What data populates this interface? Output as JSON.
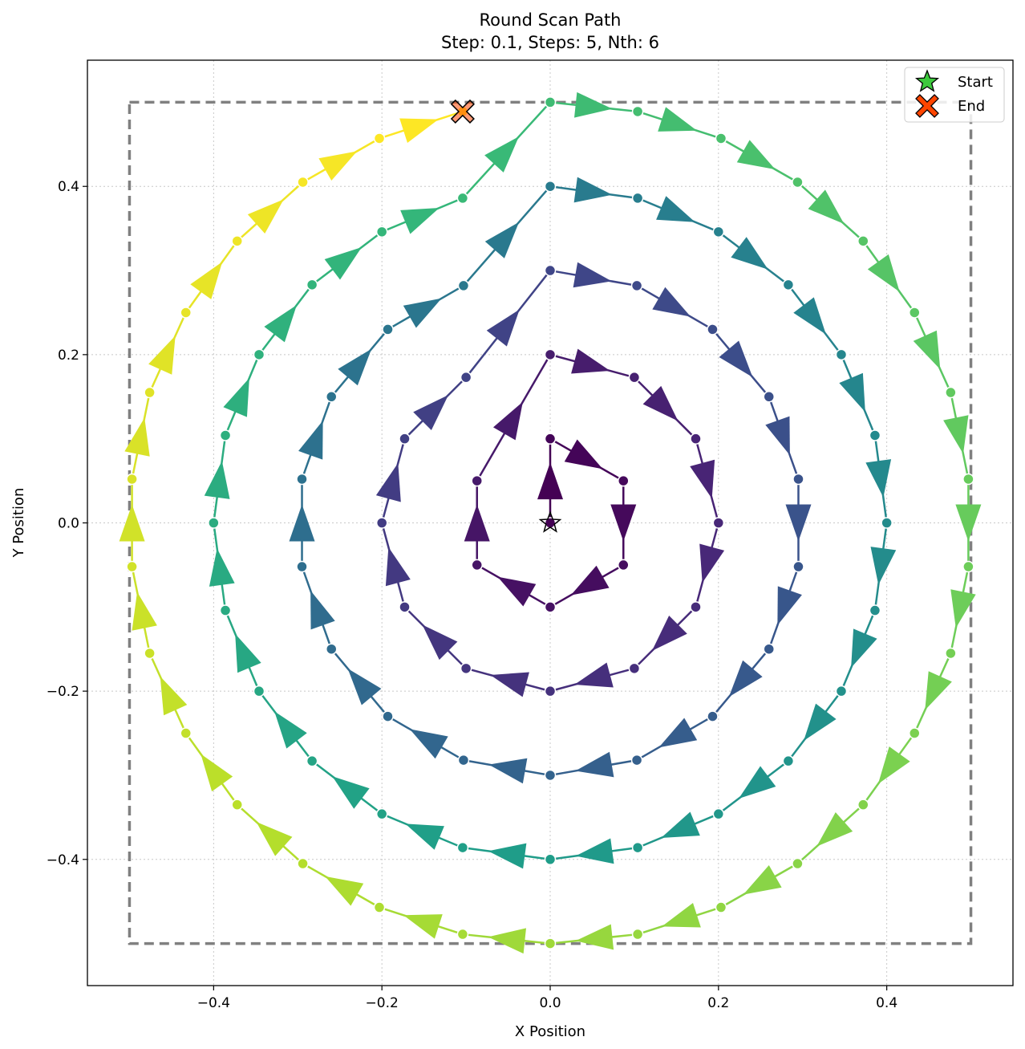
{
  "chart_data": {
    "type": "line",
    "title": "Round Scan Path",
    "subtitle": "Step: 0.1, Steps: 5, Nth: 6",
    "xlabel": "X Position",
    "ylabel": "Y Position",
    "xlim": [
      -0.55,
      0.55
    ],
    "ylim": [
      -0.55,
      0.55
    ],
    "xticks": [
      -0.4,
      -0.2,
      0.0,
      0.2,
      0.4
    ],
    "yticks": [
      -0.4,
      -0.2,
      0.0,
      0.2,
      0.4
    ],
    "xtick_labels": [
      "−0.4",
      "−0.2",
      "0.0",
      "0.2",
      "0.4"
    ],
    "ytick_labels": [
      "−0.4",
      "−0.2",
      "0.0",
      "0.2",
      "0.4"
    ],
    "grid": true,
    "legend_position": "top-right",
    "bounding_box": {
      "x": [
        -0.5,
        0.5
      ],
      "y": [
        -0.5,
        0.5
      ]
    },
    "start": {
      "label": "Start",
      "x": 0.0,
      "y": 0.0
    },
    "end": {
      "label": "End",
      "x": -0.104,
      "y": 0.489
    },
    "path": [
      [
        0.0,
        0.0
      ],
      [
        0.0,
        0.1
      ],
      [
        0.087,
        0.05
      ],
      [
        0.087,
        -0.05
      ],
      [
        0.0,
        -0.1
      ],
      [
        -0.087,
        -0.05
      ],
      [
        -0.087,
        0.05
      ],
      [
        0.0,
        0.2
      ],
      [
        0.1,
        0.173
      ],
      [
        0.173,
        0.1
      ],
      [
        0.2,
        0.0
      ],
      [
        0.173,
        -0.1
      ],
      [
        0.1,
        -0.173
      ],
      [
        0.0,
        -0.2
      ],
      [
        -0.1,
        -0.173
      ],
      [
        -0.173,
        -0.1
      ],
      [
        -0.2,
        0.0
      ],
      [
        -0.173,
        0.1
      ],
      [
        -0.1,
        0.173
      ],
      [
        0.0,
        0.3
      ],
      [
        0.103,
        0.282
      ],
      [
        0.193,
        0.23
      ],
      [
        0.26,
        0.15
      ],
      [
        0.295,
        0.052
      ],
      [
        0.295,
        -0.052
      ],
      [
        0.26,
        -0.15
      ],
      [
        0.193,
        -0.23
      ],
      [
        0.103,
        -0.282
      ],
      [
        0.0,
        -0.3
      ],
      [
        -0.103,
        -0.282
      ],
      [
        -0.193,
        -0.23
      ],
      [
        -0.26,
        -0.15
      ],
      [
        -0.295,
        -0.052
      ],
      [
        -0.295,
        0.052
      ],
      [
        -0.26,
        0.15
      ],
      [
        -0.193,
        0.23
      ],
      [
        -0.103,
        0.282
      ],
      [
        0.0,
        0.4
      ],
      [
        0.104,
        0.386
      ],
      [
        0.2,
        0.346
      ],
      [
        0.283,
        0.283
      ],
      [
        0.346,
        0.2
      ],
      [
        0.386,
        0.104
      ],
      [
        0.4,
        0.0
      ],
      [
        0.386,
        -0.104
      ],
      [
        0.346,
        -0.2
      ],
      [
        0.283,
        -0.283
      ],
      [
        0.2,
        -0.346
      ],
      [
        0.104,
        -0.386
      ],
      [
        0.0,
        -0.4
      ],
      [
        -0.104,
        -0.386
      ],
      [
        -0.2,
        -0.346
      ],
      [
        -0.283,
        -0.283
      ],
      [
        -0.346,
        -0.2
      ],
      [
        -0.386,
        -0.104
      ],
      [
        -0.4,
        0.0
      ],
      [
        -0.386,
        0.104
      ],
      [
        -0.346,
        0.2
      ],
      [
        -0.283,
        0.283
      ],
      [
        -0.2,
        0.346
      ],
      [
        -0.104,
        0.386
      ],
      [
        0.0,
        0.5
      ],
      [
        0.104,
        0.489
      ],
      [
        0.203,
        0.457
      ],
      [
        0.294,
        0.405
      ],
      [
        0.372,
        0.335
      ],
      [
        0.433,
        0.25
      ],
      [
        0.476,
        0.155
      ],
      [
        0.497,
        0.052
      ],
      [
        0.497,
        -0.052
      ],
      [
        0.476,
        -0.155
      ],
      [
        0.433,
        -0.25
      ],
      [
        0.372,
        -0.335
      ],
      [
        0.294,
        -0.405
      ],
      [
        0.203,
        -0.457
      ],
      [
        0.104,
        -0.489
      ],
      [
        0.0,
        -0.5
      ],
      [
        -0.104,
        -0.489
      ],
      [
        -0.203,
        -0.457
      ],
      [
        -0.294,
        -0.405
      ],
      [
        -0.372,
        -0.335
      ],
      [
        -0.433,
        -0.25
      ],
      [
        -0.476,
        -0.155
      ],
      [
        -0.497,
        -0.052
      ],
      [
        -0.497,
        0.052
      ],
      [
        -0.476,
        0.155
      ],
      [
        -0.433,
        0.25
      ],
      [
        -0.372,
        0.335
      ],
      [
        -0.294,
        0.405
      ],
      [
        -0.203,
        0.457
      ],
      [
        -0.104,
        0.489
      ]
    ],
    "colormap": [
      "#440154",
      "#482878",
      "#3e4989",
      "#31688e",
      "#26828e",
      "#1f9e89",
      "#35b779",
      "#6ece58",
      "#b5de2b",
      "#fde725"
    ],
    "marker_edge_color": "#ffffff",
    "start_color": "#3dc93d",
    "end_color": "#ff4500",
    "box_color": "#808080"
  }
}
